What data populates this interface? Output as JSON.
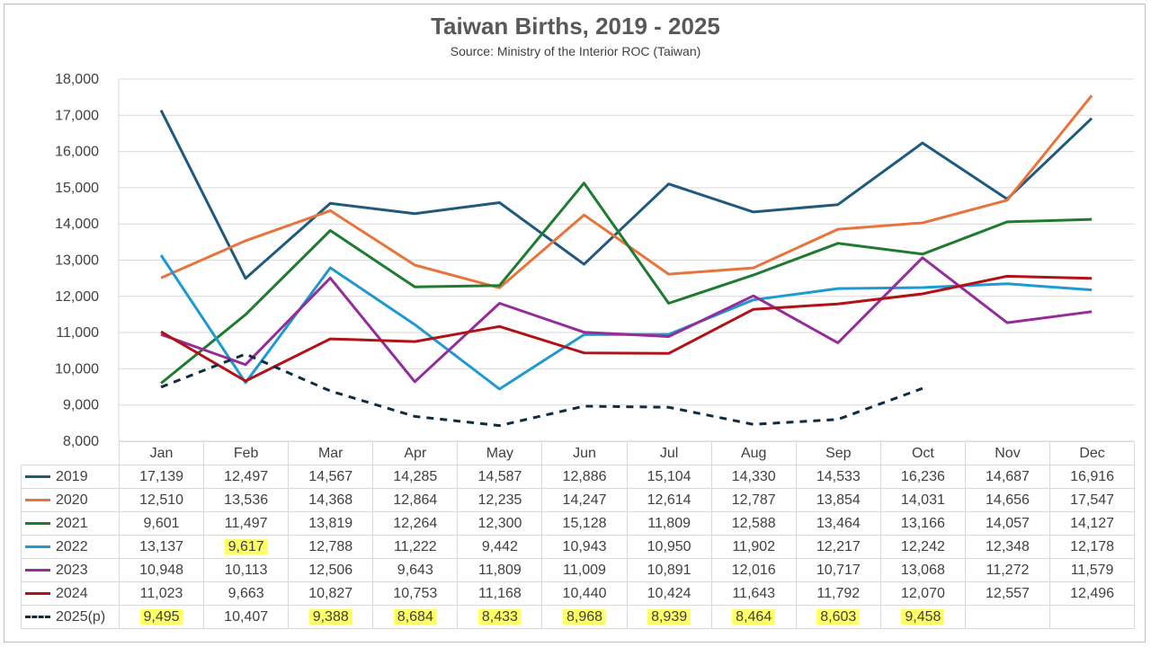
{
  "title": "Taiwan Births, 2019 - 2025",
  "subtitle": "Source: Ministry of the Interior ROC (Taiwan)",
  "chart_data": {
    "type": "line",
    "title": "Taiwan Births, 2019 - 2025",
    "subtitle": "Source: Ministry of the Interior ROC (Taiwan)",
    "categories": [
      "Jan",
      "Feb",
      "Mar",
      "Apr",
      "May",
      "Jun",
      "Jul",
      "Aug",
      "Sep",
      "Oct",
      "Nov",
      "Dec"
    ],
    "ylim": [
      8000,
      18000
    ],
    "yticks": [
      "8,000",
      "9,000",
      "10,000",
      "11,000",
      "12,000",
      "13,000",
      "14,000",
      "15,000",
      "16,000",
      "17,000",
      "18,000"
    ],
    "grid": true,
    "legend": "data-table",
    "series": [
      {
        "name": "2019",
        "color": "#1f5a7e",
        "dashed": false,
        "values": [
          17139,
          12497,
          14567,
          14285,
          14587,
          12886,
          15104,
          14330,
          14533,
          16236,
          14687,
          16916
        ],
        "labels": [
          "17,139",
          "12,497",
          "14,567",
          "14,285",
          "14,587",
          "12,886",
          "15,104",
          "14,330",
          "14,533",
          "16,236",
          "14,687",
          "16,916"
        ]
      },
      {
        "name": "2020",
        "color": "#e8743b",
        "dashed": false,
        "values": [
          12510,
          13536,
          14368,
          12864,
          12235,
          14247,
          12614,
          12787,
          13854,
          14031,
          14656,
          17547
        ],
        "labels": [
          "12,510",
          "13,536",
          "14,368",
          "12,864",
          "12,235",
          "14,247",
          "12,614",
          "12,787",
          "13,854",
          "14,031",
          "14,656",
          "17,547"
        ]
      },
      {
        "name": "2021",
        "color": "#1e7b2f",
        "dashed": false,
        "values": [
          9601,
          11497,
          13819,
          12264,
          12300,
          15128,
          11809,
          12588,
          13464,
          13166,
          14057,
          14127
        ],
        "labels": [
          "9,601",
          "11,497",
          "13,819",
          "12,264",
          "12,300",
          "15,128",
          "11,809",
          "12,588",
          "13,464",
          "13,166",
          "14,057",
          "14,127"
        ]
      },
      {
        "name": "2022",
        "color": "#1e9ad3",
        "dashed": false,
        "values": [
          13137,
          9617,
          12788,
          11222,
          9442,
          10943,
          10950,
          11902,
          12217,
          12242,
          12348,
          12178
        ],
        "labels": [
          "13,137",
          "9,617",
          "12,788",
          "11,222",
          "9,442",
          "10,943",
          "10,950",
          "11,902",
          "12,217",
          "12,242",
          "12,348",
          "12,178"
        ],
        "highlight": [
          false,
          true,
          false,
          false,
          false,
          false,
          false,
          false,
          false,
          false,
          false,
          false
        ]
      },
      {
        "name": "2023",
        "color": "#952c99",
        "dashed": false,
        "values": [
          10948,
          10113,
          12506,
          9643,
          11809,
          11009,
          10891,
          12016,
          10717,
          13068,
          11272,
          11579
        ],
        "labels": [
          "10,948",
          "10,113",
          "12,506",
          "9,643",
          "11,809",
          "11,009",
          "10,891",
          "12,016",
          "10,717",
          "13,068",
          "11,272",
          "11,579"
        ]
      },
      {
        "name": "2024",
        "color": "#b01218",
        "dashed": false,
        "values": [
          11023,
          9663,
          10827,
          10753,
          11168,
          10440,
          10424,
          11643,
          11792,
          12070,
          12557,
          12496
        ],
        "labels": [
          "11,023",
          "9,663",
          "10,827",
          "10,753",
          "11,168",
          "10,440",
          "10,424",
          "11,643",
          "11,792",
          "12,070",
          "12,557",
          "12,496"
        ]
      },
      {
        "name": "2025(p)",
        "color": "#0f2d40",
        "dashed": true,
        "values": [
          9495,
          10407,
          9388,
          8684,
          8433,
          8968,
          8939,
          8464,
          8603,
          9458,
          null,
          null
        ],
        "labels": [
          "9,495",
          "10,407",
          "9,388",
          "8,684",
          "8,433",
          "8,968",
          "8,939",
          "8,464",
          "8,603",
          "9,458",
          "",
          ""
        ],
        "highlight": [
          true,
          false,
          true,
          true,
          true,
          true,
          true,
          true,
          true,
          true,
          false,
          false
        ]
      }
    ]
  }
}
